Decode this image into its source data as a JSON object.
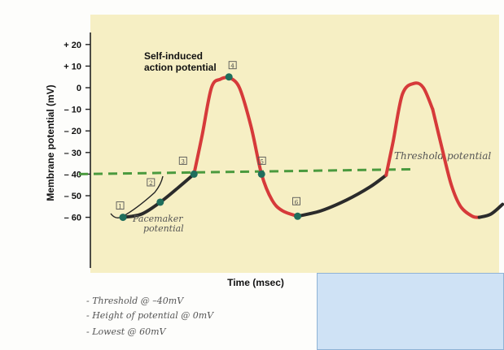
{
  "chart_data": {
    "type": "line",
    "title": "",
    "xlabel": "Time (msec)",
    "ylabel": "Membrane potential (mV)",
    "ylim": [
      -72,
      26
    ],
    "yticks": [
      20,
      10,
      0,
      -10,
      -20,
      -30,
      -40,
      -50,
      -60
    ],
    "ytick_labels": [
      "+ 20",
      "+ 10",
      "0",
      "– 10",
      "– 20",
      "– 30",
      "– 40",
      "– 50",
      "– 60"
    ],
    "grid": false,
    "threshold": {
      "value": -40,
      "label": "Threshold potential"
    },
    "series": [
      {
        "phase": "pacemaker",
        "color": "#2b2b2b",
        "x": [
          2.8,
          4.4,
          6.0,
          7.6,
          8.9
        ],
        "y": [
          -60,
          -58.5,
          -53,
          -46,
          -40
        ]
      },
      {
        "phase": "depolarization",
        "color": "#d63a3a",
        "x": [
          8.9,
          9.6,
          10.4,
          11.2,
          11.9
        ],
        "y": [
          -40,
          -22,
          0,
          4,
          5
        ]
      },
      {
        "phase": "repolarization",
        "color": "#d63a3a",
        "x": [
          11.9,
          12.8,
          13.8,
          14.7,
          15.6,
          16.5,
          17.8
        ],
        "y": [
          5,
          0,
          -18,
          -40,
          -52,
          -57,
          -59.5
        ]
      },
      {
        "phase": "pacemaker",
        "color": "#2b2b2b",
        "x": [
          17.8,
          19.8,
          22.0,
          24.0,
          25.4
        ],
        "y": [
          -59.5,
          -57,
          -52,
          -46,
          -40.5
        ]
      },
      {
        "phase": "depolarization",
        "color": "#d63a3a",
        "x": [
          25.4,
          26.0,
          26.8,
          27.8,
          28.6,
          29.4
        ],
        "y": [
          -40.5,
          -25,
          -3,
          2,
          0,
          -10
        ]
      },
      {
        "phase": "repolarization",
        "color": "#d63a3a",
        "x": [
          29.4,
          30.2,
          31.0,
          31.8,
          32.8,
          33.4
        ],
        "y": [
          -10,
          -28,
          -45,
          -55,
          -59.5,
          -60
        ]
      },
      {
        "phase": "pacemaker",
        "color": "#2b2b2b",
        "x": [
          33.4,
          34.4,
          35.4
        ],
        "y": [
          -60,
          -58.5,
          -54
        ]
      }
    ],
    "points": [
      {
        "label": "1",
        "x": 2.8,
        "y": -60
      },
      {
        "label": "2",
        "x": 6.0,
        "y": -53
      },
      {
        "label": "3",
        "x": 8.9,
        "y": -40
      },
      {
        "label": "4",
        "x": 11.9,
        "y": 5
      },
      {
        "label": "5",
        "x": 14.7,
        "y": -40
      },
      {
        "label": "6",
        "x": 17.8,
        "y": -59.5
      }
    ],
    "annotations": {
      "self_induced": [
        "Self-induced",
        "action potential"
      ],
      "pacemaker": [
        "Pacemaker",
        "potential"
      ]
    }
  },
  "notes": [
    "- Threshold @ –40mV",
    "- Height of potential @ 0mV",
    "- Lowest @ 60mV"
  ],
  "colors": {
    "plot_bg": "#f6efc4",
    "threshold": "#4a9a3e",
    "point": "#1f6e5c",
    "handwriting": "#555555"
  }
}
